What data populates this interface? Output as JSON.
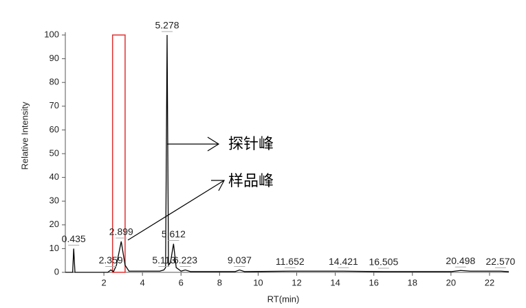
{
  "chart_data": {
    "type": "line",
    "x_label": "RT(min)",
    "y_label": "Relative Intensity",
    "xlim": [
      0,
      23
    ],
    "ylim": [
      0,
      100
    ],
    "xticks": [
      2,
      4,
      6,
      8,
      10,
      12,
      14,
      16,
      18,
      20,
      22
    ],
    "yticks": [
      0,
      10,
      20,
      30,
      40,
      50,
      60,
      70,
      80,
      90,
      100
    ],
    "series": [
      {
        "color": "#000000",
        "x": [
          0,
          0.38,
          0.435,
          0.5,
          2.2,
          2.359,
          2.5,
          2.65,
          2.899,
          3.1,
          3.3,
          4.9,
          5.113,
          5.2,
          5.278,
          5.35,
          5.45,
          5.612,
          5.75,
          6.0,
          6.223,
          6.5,
          8.8,
          9.037,
          9.3,
          11.652,
          14.421,
          16.505,
          20.0,
          20.498,
          21.0,
          22.57,
          23.0
        ],
        "values": [
          0,
          0,
          10,
          0,
          0,
          1,
          0.3,
          3,
          13,
          3,
          0.5,
          0.5,
          1,
          2,
          100,
          3,
          4,
          12,
          2,
          0.5,
          1,
          0.3,
          0.3,
          1,
          0.3,
          0.5,
          0.5,
          0.3,
          0.3,
          0.8,
          0.5,
          0.5,
          0.3
        ]
      }
    ],
    "peak_labels": [
      {
        "rt": {
          "value": 0.435,
          "label": "0.435"
        },
        "height": 10
      },
      {
        "rt": {
          "value": 2.359,
          "label": "2.359"
        },
        "height": 1
      },
      {
        "rt": {
          "value": 2.899,
          "label": "2.899"
        },
        "height": 13
      },
      {
        "rt": {
          "value": 5.113,
          "label": "5.113"
        },
        "height": 1
      },
      {
        "rt": {
          "value": 5.278,
          "label": "5.278"
        },
        "height": 100
      },
      {
        "rt": {
          "value": 5.612,
          "label": "5.612"
        },
        "height": 12
      },
      {
        "rt": {
          "value": 6.223,
          "label": "6.223"
        },
        "height": 1
      },
      {
        "rt": {
          "value": 9.037,
          "label": "9.037"
        },
        "height": 1
      },
      {
        "rt": {
          "value": 11.652,
          "label": "11.652"
        },
        "height": 0.5
      },
      {
        "rt": {
          "value": 14.421,
          "label": "14.421"
        },
        "height": 0.5
      },
      {
        "rt": {
          "value": 16.505,
          "label": "16.505"
        },
        "height": 0.3
      },
      {
        "rt": {
          "value": 20.498,
          "label": "20.498"
        },
        "height": 0.8
      },
      {
        "rt": {
          "value": 22.57,
          "label": "22.570"
        },
        "height": 0.5
      }
    ],
    "highlight": {
      "x": [
        2.45,
        3.1
      ],
      "y": [
        0,
        100
      ],
      "color": "#e03030"
    },
    "annotations": [
      "探针峰",
      "样品峰"
    ]
  }
}
